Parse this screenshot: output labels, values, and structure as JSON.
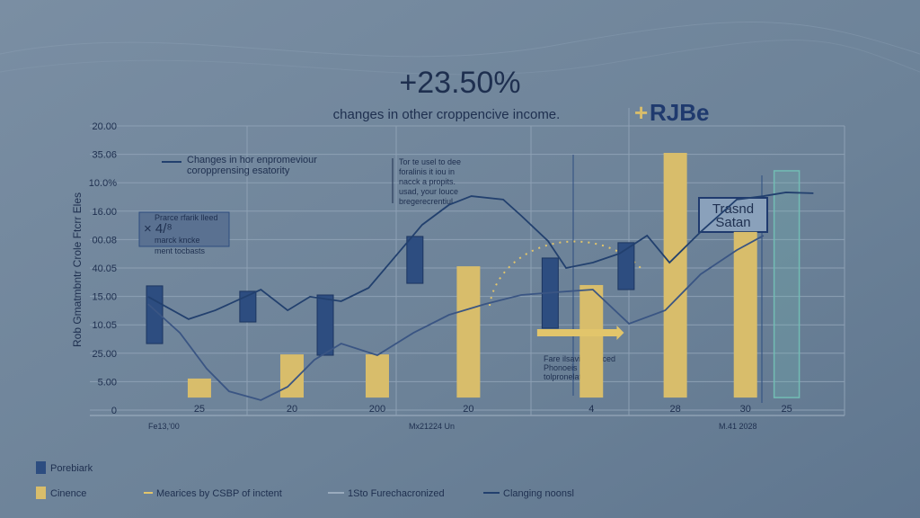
{
  "chart_data": {
    "type": "combo",
    "title": "+23.50%",
    "subtitle": "changes in other croppencive income.",
    "logo": {
      "plus": "+",
      "text": "RJBe"
    },
    "y_label": "Rob Gmatmbntr Crole   Ftcrr Eles",
    "xlim": [
      0,
      100
    ],
    "ylim": [
      0,
      10
    ],
    "yticks": [
      0,
      {
        "value": 1,
        "label": "5.00"
      },
      {
        "value": 2,
        "label": "25.00"
      },
      {
        "value": 3,
        "label": "10.05"
      },
      {
        "value": 4,
        "label": "15.00"
      },
      {
        "value": 5,
        "label": "40.05"
      },
      {
        "value": 6,
        "label": "00.08"
      },
      {
        "value": 7,
        "label": "16.00"
      },
      {
        "value": 8,
        "label": "10.0%"
      },
      {
        "value": 9,
        "label": "35.06"
      },
      {
        "value": 10,
        "label": "20.00"
      }
    ],
    "xticks": [
      {
        "value": 10.8,
        "label": "25"
      },
      {
        "value": 23.6,
        "label": "20"
      },
      {
        "value": 35.4,
        "label": "200"
      },
      {
        "value": 48.0,
        "label": "20"
      },
      {
        "value": 65.0,
        "label": "4"
      },
      {
        "value": 76.6,
        "label": "28"
      },
      {
        "value": 86.3,
        "label": "30"
      },
      {
        "value": 92.0,
        "label": "25"
      }
    ],
    "grid": true,
    "series": [
      {
        "name": "Porebiark",
        "type": "box",
        "color": "#2d4d80",
        "x": [
          4.6,
          17.5,
          28.2,
          40.6,
          59.3,
          69.8
        ],
        "low": [
          2.34,
          3.1,
          1.93,
          4.46,
          2.88,
          4.24
        ],
        "high": [
          4.37,
          4.18,
          4.05,
          6.11,
          5.35,
          5.89
        ]
      },
      {
        "name": "Cinence",
        "type": "box",
        "color": "#d8bd6b",
        "x": [
          10.8,
          23.6,
          35.4,
          48.0,
          65.0,
          76.6,
          86.3
        ],
        "low": [
          0.44,
          0.44,
          0.44,
          0.44,
          0.44,
          0.44,
          0.44
        ],
        "high": [
          1.11,
          1.96,
          1.96,
          5.06,
          4.4,
          9.05,
          6.27
        ]
      },
      {
        "name": "Mearices by CSBP of inctent",
        "type": "arrow",
        "color": "#e2c56b",
        "x": [
          57.5,
          69.5
        ],
        "values": [
          2.72,
          2.72
        ]
      },
      {
        "name": "1Sto Furechacronized",
        "type": "line",
        "color": "#3a5583",
        "x": [
          3.7,
          8.1,
          11.8,
          14.9,
          19.3,
          23.0,
          26.7,
          30.4,
          35.4,
          40.4,
          45.3,
          50.3,
          55.3,
          60.2,
          65.2,
          70.2,
          75.2,
          80.1,
          85.1,
          88.8
        ],
        "values": [
          3.73,
          2.72,
          1.46,
          0.66,
          0.35,
          0.82,
          1.77,
          2.34,
          1.93,
          2.72,
          3.35,
          3.73,
          4.05,
          4.15,
          4.24,
          3.04,
          3.51,
          4.78,
          5.63,
          6.14
        ]
      },
      {
        "name": "Clanging noonsl",
        "type": "line",
        "color": "#22406e",
        "x": [
          3.7,
          9.3,
          13.0,
          19.3,
          23.0,
          26.1,
          30.4,
          34.2,
          37.9,
          41.6,
          45.3,
          48.4,
          52.8,
          55.3,
          59.0,
          61.5,
          65.2,
          68.9,
          72.7,
          75.8,
          80.1,
          85.1,
          88.8,
          91.9,
          95.7
        ],
        "values": [
          3.99,
          3.2,
          3.51,
          4.24,
          3.51,
          3.99,
          3.83,
          4.3,
          5.41,
          6.52,
          7.22,
          7.53,
          7.41,
          6.84,
          5.95,
          5.0,
          5.19,
          5.51,
          6.14,
          5.19,
          6.27,
          7.41,
          7.53,
          7.66,
          7.63
        ]
      }
    ],
    "highlight": {
      "x": 92.0,
      "low": 0.44,
      "high": 8.42,
      "color": "#72bdb4"
    },
    "annotations": {
      "top_legend": [
        "Changes in hor enpromeviour",
        "coropprensing esatority"
      ],
      "middle_note": [
        "Tor te usel to dee",
        "foralinis it iou in",
        "nacck a propits.",
        "usad, your louce",
        "bregerecrentiul"
      ],
      "left_box": [
        "Prarce rfarik lleed",
        "× 4/⁸",
        "marck kncke",
        "ment tocbasts"
      ],
      "right_box": [
        "Trasnd",
        "Satan"
      ],
      "lower_note": [
        "Fare ilsaviay theced",
        "Phonoeis is tjith",
        "tolpronelats"
      ],
      "x_notes": [
        "Fe13,'00",
        "Mx21224   Un",
        "M.41 2028"
      ]
    }
  }
}
